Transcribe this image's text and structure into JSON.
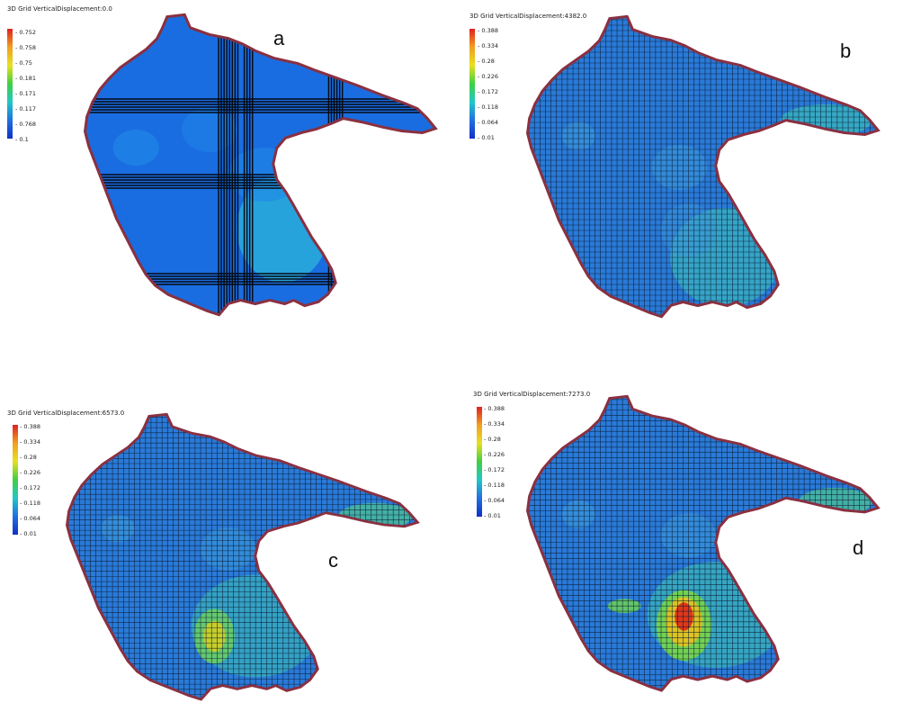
{
  "figure": {
    "panels": [
      {
        "id": "a",
        "letter": "a",
        "title": "3D Grid VerticalDisplacement:0.0",
        "legend": [
          "0.752",
          "0.758",
          "0.75",
          "0.181",
          "0.171",
          "0.117",
          "0.768",
          "0.1"
        ],
        "colors": {
          "base": "#1a6de0",
          "alt": "#1f88e8",
          "hot": "#30c8d8"
        }
      },
      {
        "id": "b",
        "letter": "b",
        "title": "3D Grid VerticalDisplacement:4382.0",
        "legend": [
          "0.388",
          "0.334",
          "0.28",
          "0.226",
          "0.172",
          "0.118",
          "0.064",
          "0.01"
        ],
        "colors": {
          "base": "#2a7ad8",
          "alt": "#3a96da",
          "hot": "#40c6b8"
        }
      },
      {
        "id": "c",
        "letter": "c",
        "title": "3D Grid VerticalDisplacement:6573.0",
        "legend": [
          "0.388",
          "0.334",
          "0.28",
          "0.226",
          "0.172",
          "0.118",
          "0.064",
          "0.01"
        ],
        "colors": {
          "base": "#2a7ad8",
          "alt": "#3a96da",
          "hot": "#6cd060",
          "peak": "#d8d020"
        }
      },
      {
        "id": "d",
        "letter": "d",
        "title": "3D Grid VerticalDisplacement:7273.0",
        "legend": [
          "0.388",
          "0.334",
          "0.28",
          "0.226",
          "0.172",
          "0.118",
          "0.064",
          "0.01"
        ],
        "colors": {
          "base": "#2a7ad8",
          "alt": "#3a96da",
          "hot": "#e8c020",
          "peak": "#e02818"
        }
      }
    ],
    "colors": {
      "legend_gradient": [
        "#e02020",
        "#f0a020",
        "#e8e020",
        "#40d040",
        "#20c8c8",
        "#2070e0",
        "#1030c8"
      ],
      "edge": "#8a3040",
      "grid": "#0a1a30"
    }
  }
}
